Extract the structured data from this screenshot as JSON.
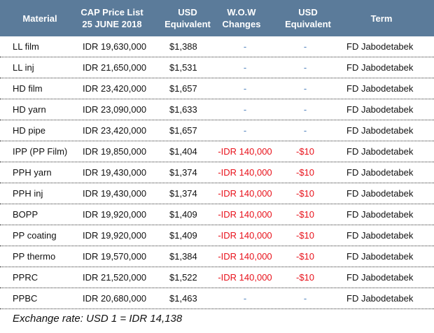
{
  "table": {
    "header": [
      [
        "Material"
      ],
      [
        "CAP Price List",
        "25 JUNE 2018"
      ],
      [
        "USD",
        "Equivalent"
      ],
      [
        "W.O.W",
        "Changes"
      ],
      [
        "USD",
        "Equivalent"
      ],
      [
        "Term"
      ]
    ],
    "rows": [
      [
        "LL film",
        "IDR 19,630,000",
        "$1,388",
        "-",
        "-",
        "FD Jabodetabek"
      ],
      [
        "LL inj",
        "IDR 21,650,000",
        "$1,531",
        "-",
        "-",
        "FD Jabodetabek"
      ],
      [
        "HD film",
        "IDR 23,420,000",
        "$1,657",
        "-",
        "-",
        "FD Jabodetabek"
      ],
      [
        "HD yarn",
        "IDR 23,090,000",
        "$1,633",
        "-",
        "-",
        "FD Jabodetabek"
      ],
      [
        "HD pipe",
        "IDR 23,420,000",
        "$1,657",
        "-",
        "-",
        "FD Jabodetabek"
      ],
      [
        "IPP (PP Film)",
        "IDR 19,850,000",
        "$1,404",
        "-IDR 140,000",
        "-$10",
        "FD Jabodetabek"
      ],
      [
        "PPH yarn",
        "IDR 19,430,000",
        "$1,374",
        "-IDR 140,000",
        "-$10",
        "FD Jabodetabek"
      ],
      [
        "PPH inj",
        "IDR 19,430,000",
        "$1,374",
        "-IDR 140,000",
        "-$10",
        "FD Jabodetabek"
      ],
      [
        "BOPP",
        "IDR 19,920,000",
        "$1,409",
        "-IDR 140,000",
        "-$10",
        "FD Jabodetabek"
      ],
      [
        "PP coating",
        "IDR 19,920,000",
        "$1,409",
        "-IDR 140,000",
        "-$10",
        "FD Jabodetabek"
      ],
      [
        "PP thermo",
        "IDR 19,570,000",
        "$1,384",
        "-IDR 140,000",
        "-$10",
        "FD Jabodetabek"
      ],
      [
        "PPRC",
        "IDR 21,520,000",
        "$1,522",
        "-IDR 140,000",
        "-$10",
        "FD Jabodetabek"
      ],
      [
        "PPBC",
        "IDR 20,680,000",
        "$1,463",
        "-",
        "-",
        "FD Jabodetabek"
      ]
    ]
  },
  "footer": "Exchange rate: USD 1 = IDR 14,138"
}
